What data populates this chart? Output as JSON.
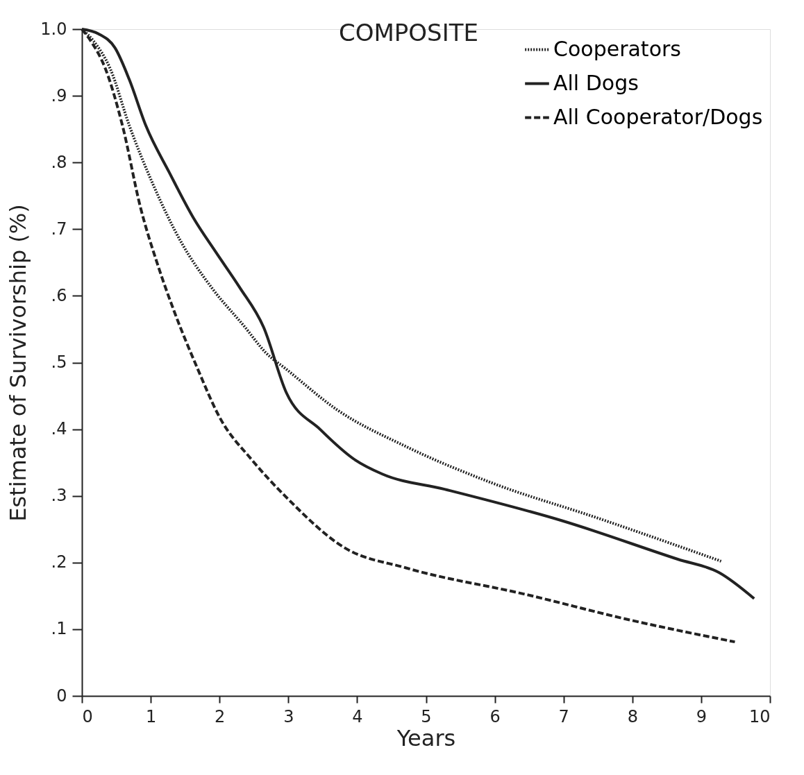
{
  "chart_data": {
    "type": "line",
    "title": "COMPOSITE",
    "xlabel": "Years",
    "ylabel": "Estimate of Survivorship (%)",
    "xlim": [
      0,
      10
    ],
    "xticks": [
      0,
      1,
      2,
      3,
      4,
      5,
      6,
      7,
      8,
      9,
      10
    ],
    "ylim": [
      0,
      1
    ],
    "yticks": [
      0,
      {
        "value": 0.1,
        "label": ".1"
      },
      {
        "value": 0.2,
        "label": ".2"
      },
      {
        "value": 0.3,
        "label": ".3"
      },
      {
        "value": 0.4,
        "label": ".4"
      },
      {
        "value": 0.5,
        "label": ".5"
      },
      {
        "value": 0.6,
        "label": ".6"
      },
      {
        "value": 0.7,
        "label": ".7"
      },
      {
        "value": 0.8,
        "label": ".8"
      },
      {
        "value": 0.9,
        "label": ".9"
      },
      {
        "value": 1,
        "label": "1.0"
      }
    ],
    "grid": false,
    "legend": "top right",
    "marker": "none",
    "series": [
      {
        "name": "Cooperators",
        "color": "#222222",
        "line_style": "dotted",
        "x": [
          0,
          0.17,
          0.41,
          0.69,
          1.03,
          1.44,
          1.88,
          2.37,
          2.67,
          2.97,
          3.71,
          4.71,
          5.97,
          7.46,
          9.29
        ],
        "values": [
          1.0,
          0.982,
          0.941,
          0.855,
          0.768,
          0.681,
          0.613,
          0.553,
          0.515,
          0.49,
          0.429,
          0.374,
          0.319,
          0.268,
          0.202
        ]
      },
      {
        "name": "All Dogs",
        "color": "#222222",
        "line_style": "solid",
        "x": [
          0,
          0.24,
          0.48,
          0.69,
          0.93,
          1.27,
          1.62,
          1.95,
          2.29,
          2.64,
          2.97,
          3.47,
          3.97,
          4.36,
          5.27,
          6.97,
          8.66,
          9.26,
          9.77
        ],
        "values": [
          1.0,
          0.993,
          0.972,
          0.924,
          0.855,
          0.785,
          0.717,
          0.665,
          0.613,
          0.553,
          0.455,
          0.399,
          0.354,
          0.333,
          0.31,
          0.263,
          0.205,
          0.185,
          0.146
        ]
      },
      {
        "name": "All Cooperator/Dogs",
        "color": "#222222",
        "line_style": "dashed",
        "x": [
          0,
          0.13,
          0.34,
          0.59,
          0.85,
          1.1,
          1.34,
          1.68,
          2.0,
          2.47,
          2.97,
          3.82,
          4.71,
          6.46,
          7.96,
          9.49
        ],
        "values": [
          1.0,
          0.982,
          0.941,
          0.855,
          0.733,
          0.647,
          0.577,
          0.491,
          0.418,
          0.354,
          0.298,
          0.222,
          0.192,
          0.152,
          0.114,
          0.081
        ]
      }
    ]
  }
}
